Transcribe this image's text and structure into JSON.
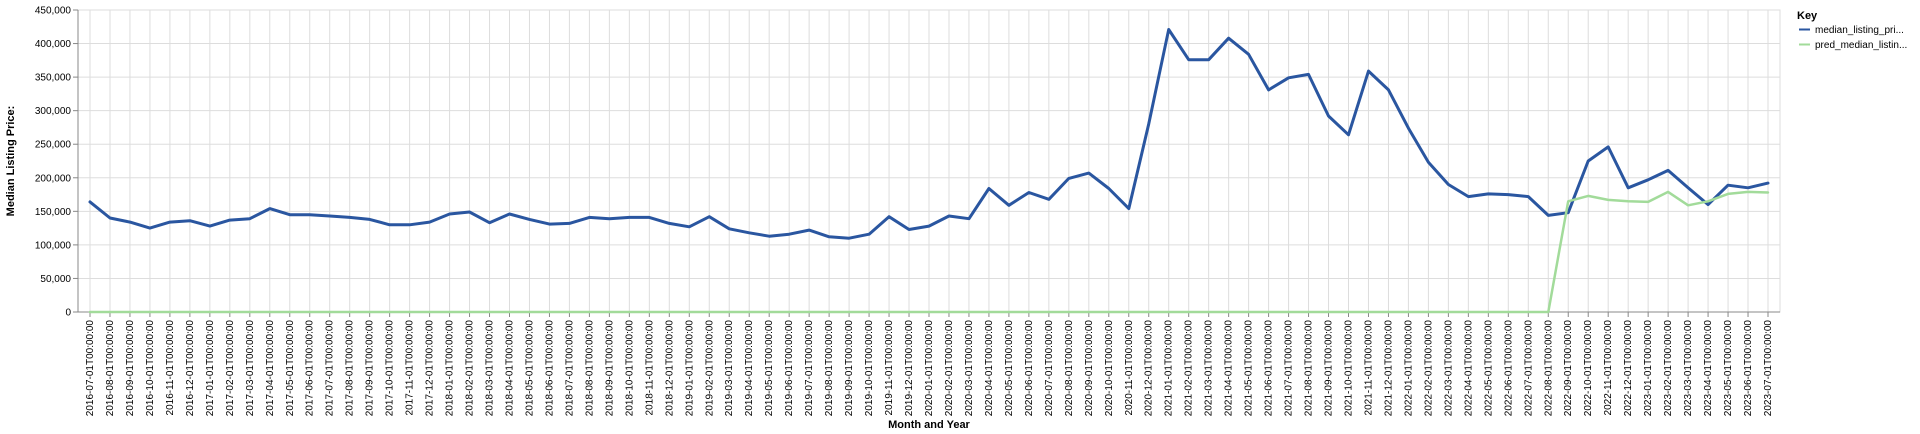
{
  "chart_data": {
    "type": "line",
    "xlabel": "Month and Year",
    "ylabel": "Median Listing Price:",
    "ylim": [
      0,
      450000
    ],
    "y_ticks": [
      0,
      50000,
      100000,
      150000,
      200000,
      250000,
      300000,
      350000,
      400000,
      450000
    ],
    "y_tick_labels": [
      "0",
      "50,000",
      "100,000",
      "150,000",
      "200,000",
      "250,000",
      "300,000",
      "350,000",
      "400,000",
      "450,000"
    ],
    "grid": true,
    "legend": {
      "title": "Key",
      "position": "right"
    },
    "x": [
      "2016-07-01T00:00:00",
      "2016-08-01T00:00:00",
      "2016-09-01T00:00:00",
      "2016-10-01T00:00:00",
      "2016-11-01T00:00:00",
      "2016-12-01T00:00:00",
      "2017-01-01T00:00:00",
      "2017-02-01T00:00:00",
      "2017-03-01T00:00:00",
      "2017-04-01T00:00:00",
      "2017-05-01T00:00:00",
      "2017-06-01T00:00:00",
      "2017-07-01T00:00:00",
      "2017-08-01T00:00:00",
      "2017-09-01T00:00:00",
      "2017-10-01T00:00:00",
      "2017-11-01T00:00:00",
      "2017-12-01T00:00:00",
      "2018-01-01T00:00:00",
      "2018-02-01T00:00:00",
      "2018-03-01T00:00:00",
      "2018-04-01T00:00:00",
      "2018-05-01T00:00:00",
      "2018-06-01T00:00:00",
      "2018-07-01T00:00:00",
      "2018-08-01T00:00:00",
      "2018-09-01T00:00:00",
      "2018-10-01T00:00:00",
      "2018-11-01T00:00:00",
      "2018-12-01T00:00:00",
      "2019-01-01T00:00:00",
      "2019-02-01T00:00:00",
      "2019-03-01T00:00:00",
      "2019-04-01T00:00:00",
      "2019-05-01T00:00:00",
      "2019-06-01T00:00:00",
      "2019-07-01T00:00:00",
      "2019-08-01T00:00:00",
      "2019-09-01T00:00:00",
      "2019-10-01T00:00:00",
      "2019-11-01T00:00:00",
      "2019-12-01T00:00:00",
      "2020-01-01T00:00:00",
      "2020-02-01T00:00:00",
      "2020-03-01T00:00:00",
      "2020-04-01T00:00:00",
      "2020-05-01T00:00:00",
      "2020-06-01T00:00:00",
      "2020-07-01T00:00:00",
      "2020-08-01T00:00:00",
      "2020-09-01T00:00:00",
      "2020-10-01T00:00:00",
      "2020-11-01T00:00:00",
      "2020-12-01T00:00:00",
      "2021-01-01T00:00:00",
      "2021-02-01T00:00:00",
      "2021-03-01T00:00:00",
      "2021-04-01T00:00:00",
      "2021-05-01T00:00:00",
      "2021-06-01T00:00:00",
      "2021-07-01T00:00:00",
      "2021-08-01T00:00:00",
      "2021-09-01T00:00:00",
      "2021-10-01T00:00:00",
      "2021-11-01T00:00:00",
      "2021-12-01T00:00:00",
      "2022-01-01T00:00:00",
      "2022-02-01T00:00:00",
      "2022-03-01T00:00:00",
      "2022-04-01T00:00:00",
      "2022-05-01T00:00:00",
      "2022-06-01T00:00:00",
      "2022-07-01T00:00:00",
      "2022-08-01T00:00:00",
      "2022-09-01T00:00:00",
      "2022-10-01T00:00:00",
      "2022-11-01T00:00:00",
      "2022-12-01T00:00:00",
      "2023-01-01T00:00:00",
      "2023-02-01T00:00:00",
      "2023-03-01T00:00:00",
      "2023-04-01T00:00:00",
      "2023-05-01T00:00:00",
      "2023-06-01T00:00:00",
      "2023-07-01T00:00:00"
    ],
    "series": [
      {
        "name": "median_listing_pri...",
        "color": "#2a56a0",
        "values": [
          164000,
          140000,
          134000,
          125000,
          134000,
          136000,
          128000,
          137000,
          139000,
          154000,
          145000,
          145000,
          143000,
          141000,
          138000,
          130000,
          130000,
          134000,
          146000,
          149000,
          133000,
          146000,
          138000,
          131000,
          132000,
          141000,
          139000,
          141000,
          141000,
          132000,
          127000,
          142000,
          124000,
          118000,
          113000,
          116000,
          122000,
          112000,
          110000,
          116000,
          142000,
          123000,
          128000,
          143000,
          139000,
          184000,
          159000,
          178000,
          168000,
          199000,
          207000,
          184000,
          154000,
          280000,
          421000,
          376000,
          376000,
          408000,
          384000,
          331000,
          349000,
          354000,
          292000,
          264000,
          359000,
          331000,
          274000,
          223000,
          190000,
          172000,
          176000,
          175000,
          172000,
          144000,
          148000,
          225000,
          246000,
          185000,
          197000,
          211000,
          185000,
          160000,
          189000,
          185000,
          192000
        ]
      },
      {
        "name": "pred_median_listin...",
        "color": "#a2db9a",
        "values": [
          0,
          0,
          0,
          0,
          0,
          0,
          0,
          0,
          0,
          0,
          0,
          0,
          0,
          0,
          0,
          0,
          0,
          0,
          0,
          0,
          0,
          0,
          0,
          0,
          0,
          0,
          0,
          0,
          0,
          0,
          0,
          0,
          0,
          0,
          0,
          0,
          0,
          0,
          0,
          0,
          0,
          0,
          0,
          0,
          0,
          0,
          0,
          0,
          0,
          0,
          0,
          0,
          0,
          0,
          0,
          0,
          0,
          0,
          0,
          0,
          0,
          0,
          0,
          0,
          0,
          0,
          0,
          0,
          0,
          0,
          0,
          0,
          0,
          0,
          165000,
          173000,
          167000,
          165000,
          164000,
          179000,
          159000,
          165000,
          176000,
          179000,
          178000
        ]
      }
    ]
  }
}
